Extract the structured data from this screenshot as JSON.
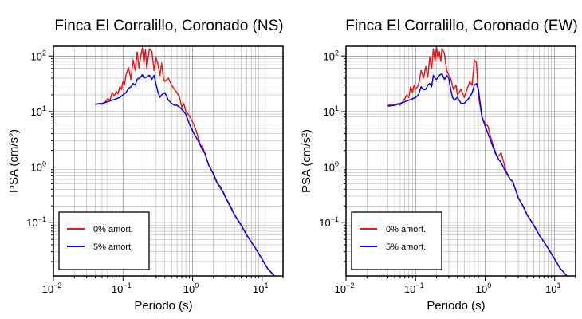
{
  "colors": {
    "undamped": "#e41a1c",
    "damped": "#0000ee"
  },
  "chart_data": [
    {
      "type": "line",
      "title": "Finca El Corralillo, Coronado (NS)",
      "xlabel": "Periodo (s)",
      "ylabel": "PSA (cm/s²)",
      "xscale": "log",
      "yscale": "log",
      "xlim": [
        0.01,
        20
      ],
      "ylim": [
        0.011,
        150
      ],
      "grid": true,
      "legend_position": "bottom-left",
      "xticks": [
        {
          "base": "10",
          "exp": "−2"
        },
        {
          "base": "10",
          "exp": "−1"
        },
        {
          "base": "10",
          "exp": "0"
        },
        {
          "base": "10",
          "exp": "1"
        }
      ],
      "yticks": [
        {
          "base": "10",
          "exp": "−1"
        },
        {
          "base": "10",
          "exp": "0"
        },
        {
          "base": "10",
          "exp": "1"
        },
        {
          "base": "10",
          "exp": "2"
        }
      ],
      "series": [
        {
          "name": "0% amort.",
          "color": "#e41a1c",
          "x": [
            0.04,
            0.045,
            0.05,
            0.055,
            0.06,
            0.065,
            0.07,
            0.075,
            0.08,
            0.085,
            0.09,
            0.095,
            0.1,
            0.105,
            0.11,
            0.12,
            0.13,
            0.14,
            0.15,
            0.16,
            0.17,
            0.18,
            0.19,
            0.2,
            0.21,
            0.22,
            0.24,
            0.26,
            0.28,
            0.3,
            0.32,
            0.34,
            0.36,
            0.38,
            0.4,
            0.45,
            0.5,
            0.55,
            0.6,
            0.65,
            0.7,
            0.75,
            0.8,
            0.9,
            1.0,
            1.1,
            1.2,
            1.3,
            1.4,
            1.5,
            1.7,
            2.0,
            2.2,
            2.5,
            2.8,
            3.0,
            3.5,
            4.0,
            5.0,
            6.0,
            8.0,
            10.0,
            12.0,
            15.0
          ],
          "y": [
            13.5,
            14,
            13.5,
            14.5,
            17,
            16,
            22,
            19,
            23,
            21,
            28,
            25,
            35,
            30,
            45,
            62,
            38,
            85,
            55,
            118,
            60,
            100,
            140,
            75,
            130,
            60,
            135,
            120,
            55,
            92,
            70,
            45,
            75,
            40,
            35,
            40,
            30,
            25,
            22,
            18,
            12,
            14,
            10,
            8.5,
            6.5,
            5.0,
            3.5,
            2.5,
            2.3,
            1.8,
            1.1,
            0.75,
            0.55,
            0.42,
            0.35,
            0.28,
            0.19,
            0.14,
            0.09,
            0.06,
            0.035,
            0.022,
            0.015,
            0.011
          ]
        },
        {
          "name": "5% amort.",
          "color": "#0000ee",
          "x": [
            0.04,
            0.05,
            0.06,
            0.07,
            0.08,
            0.09,
            0.1,
            0.11,
            0.12,
            0.13,
            0.14,
            0.15,
            0.16,
            0.17,
            0.18,
            0.19,
            0.2,
            0.22,
            0.24,
            0.26,
            0.28,
            0.3,
            0.32,
            0.34,
            0.36,
            0.4,
            0.45,
            0.5,
            0.55,
            0.6,
            0.65,
            0.7,
            0.8,
            0.9,
            1.0,
            1.2,
            1.4,
            1.5,
            1.7,
            2.0,
            2.3,
            2.5,
            3.0,
            3.5,
            4.0,
            5.0,
            6.0,
            8.0,
            10.0,
            12.0,
            15.0
          ],
          "y": [
            13.5,
            14,
            15,
            16,
            17,
            18,
            20,
            22,
            26,
            28,
            32,
            30,
            38,
            40,
            42,
            46,
            40,
            42,
            45,
            38,
            45,
            30,
            22,
            18,
            20,
            22,
            16,
            14,
            13,
            13,
            12,
            11,
            9.0,
            6.0,
            4.5,
            3.0,
            2.0,
            1.8,
            1.1,
            0.75,
            0.5,
            0.45,
            0.28,
            0.2,
            0.14,
            0.09,
            0.06,
            0.035,
            0.022,
            0.015,
            0.011
          ]
        }
      ]
    },
    {
      "type": "line",
      "title": "Finca El Corralillo, Coronado (EW)",
      "xlabel": "Periodo (s)",
      "ylabel": "PSA (cm/s²)",
      "xscale": "log",
      "yscale": "log",
      "xlim": [
        0.01,
        20
      ],
      "ylim": [
        0.011,
        150
      ],
      "grid": true,
      "legend_position": "bottom-left",
      "xticks": [
        {
          "base": "10",
          "exp": "−2"
        },
        {
          "base": "10",
          "exp": "−1"
        },
        {
          "base": "10",
          "exp": "0"
        },
        {
          "base": "10",
          "exp": "1"
        }
      ],
      "yticks": [
        {
          "base": "10",
          "exp": "−1"
        },
        {
          "base": "10",
          "exp": "0"
        },
        {
          "base": "10",
          "exp": "1"
        },
        {
          "base": "10",
          "exp": "2"
        }
      ],
      "series": [
        {
          "name": "0% amort.",
          "color": "#e41a1c",
          "x": [
            0.04,
            0.045,
            0.05,
            0.055,
            0.06,
            0.065,
            0.07,
            0.075,
            0.08,
            0.085,
            0.09,
            0.095,
            0.1,
            0.11,
            0.12,
            0.13,
            0.14,
            0.15,
            0.16,
            0.17,
            0.18,
            0.19,
            0.2,
            0.21,
            0.22,
            0.23,
            0.24,
            0.26,
            0.28,
            0.3,
            0.32,
            0.35,
            0.38,
            0.4,
            0.45,
            0.5,
            0.55,
            0.6,
            0.65,
            0.7,
            0.75,
            0.8,
            0.9,
            1.0,
            1.1,
            1.2,
            1.3,
            1.5,
            1.7,
            2.0,
            2.3,
            2.5,
            3.0,
            3.5,
            4.0,
            5.0,
            6.0,
            8.0,
            10.0,
            12.0,
            15.0
          ],
          "y": [
            13,
            13.5,
            13,
            14,
            13,
            15,
            17,
            20,
            18,
            28,
            22,
            30,
            25,
            30,
            55,
            40,
            65,
            42,
            95,
            60,
            135,
            80,
            150,
            90,
            120,
            80,
            135,
            110,
            55,
            45,
            40,
            25,
            30,
            20,
            25,
            18,
            25,
            35,
            30,
            85,
            75,
            20,
            8,
            6,
            5.5,
            3.5,
            2.5,
            1.5,
            1.8,
            0.85,
            0.6,
            0.55,
            0.28,
            0.2,
            0.14,
            0.09,
            0.06,
            0.035,
            0.022,
            0.015,
            0.011
          ]
        },
        {
          "name": "5% amort.",
          "color": "#0000ee",
          "x": [
            0.04,
            0.05,
            0.06,
            0.07,
            0.08,
            0.09,
            0.1,
            0.11,
            0.12,
            0.13,
            0.14,
            0.15,
            0.16,
            0.17,
            0.18,
            0.19,
            0.2,
            0.22,
            0.24,
            0.26,
            0.28,
            0.3,
            0.32,
            0.34,
            0.36,
            0.4,
            0.45,
            0.5,
            0.55,
            0.6,
            0.65,
            0.7,
            0.75,
            0.8,
            0.9,
            1.0,
            1.1,
            1.2,
            1.4,
            1.5,
            1.7,
            2.0,
            2.3,
            2.5,
            3.0,
            3.5,
            4.0,
            5.0,
            6.0,
            8.0,
            10.0,
            12.0,
            15.0
          ],
          "y": [
            12.5,
            13,
            14,
            15,
            16,
            17,
            18,
            20,
            28,
            25,
            25,
            30,
            32,
            28,
            45,
            40,
            38,
            45,
            48,
            38,
            45,
            40,
            25,
            18,
            16,
            18,
            14,
            14,
            16,
            18,
            22,
            30,
            32,
            25,
            8,
            5.5,
            4.0,
            3.0,
            1.8,
            1.5,
            1.2,
            0.8,
            0.6,
            0.55,
            0.28,
            0.2,
            0.14,
            0.09,
            0.06,
            0.035,
            0.022,
            0.015,
            0.011
          ]
        }
      ]
    }
  ]
}
